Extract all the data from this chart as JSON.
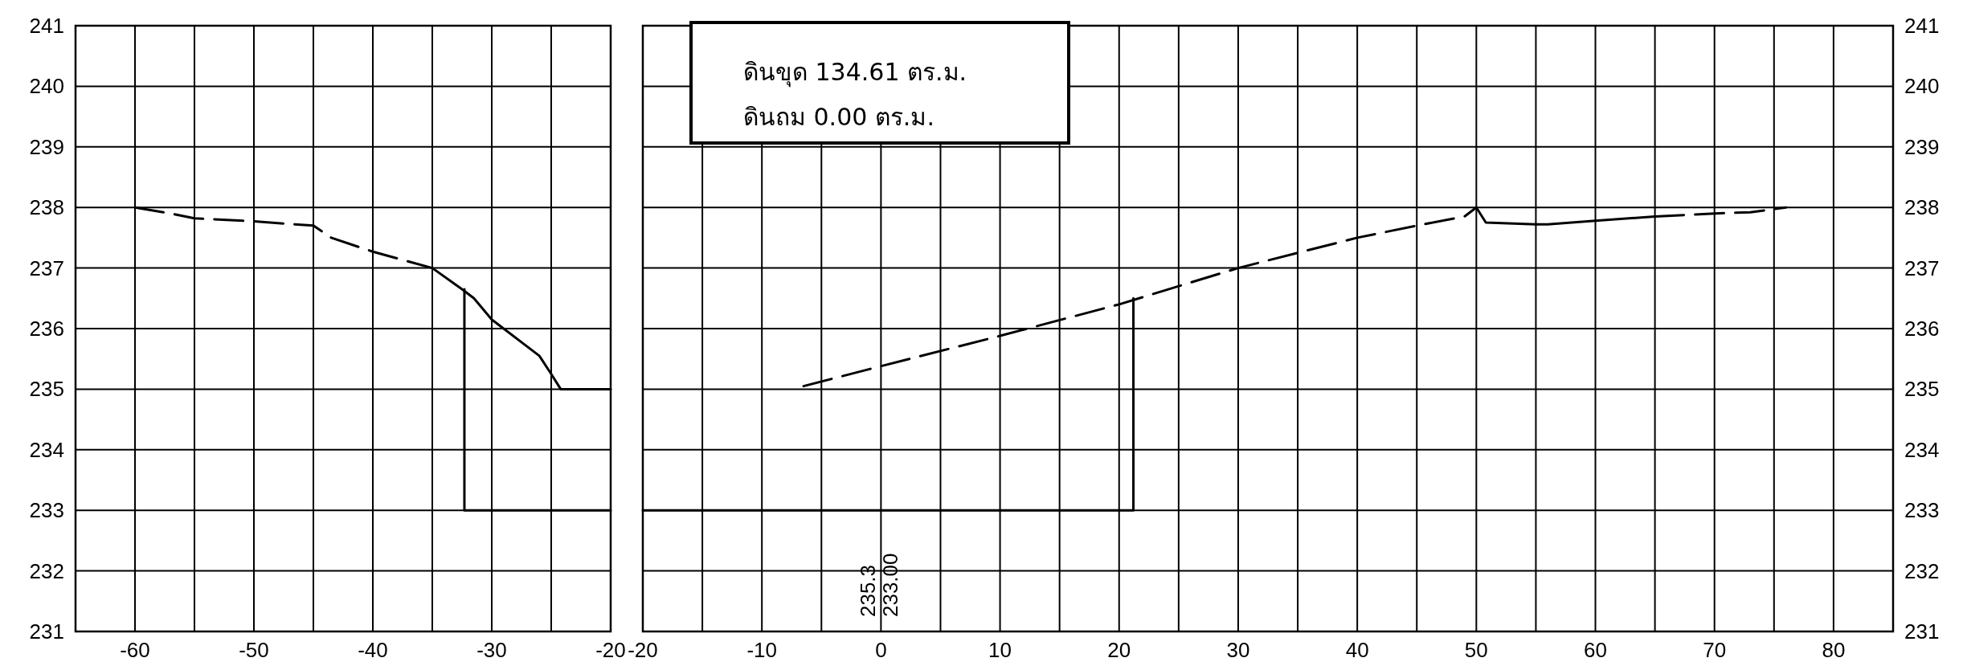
{
  "chart_data": [
    {
      "type": "line",
      "xlim": [
        -65,
        -20
      ],
      "ylim": [
        231,
        241
      ],
      "grid": true,
      "xticks": [
        {
          "value": -65,
          "label": null
        },
        -60,
        {
          "value": -55,
          "label": null
        },
        -50,
        {
          "value": -45,
          "label": null
        },
        -40,
        {
          "value": -35,
          "label": null
        },
        -30,
        {
          "value": -25,
          "label": null
        },
        -20
      ],
      "yticks": [
        231,
        232,
        233,
        234,
        235,
        236,
        237,
        238,
        239,
        240,
        241
      ],
      "series": [
        {
          "color": "#000000",
          "line_style": "dashed",
          "x": [
            -60,
            -57,
            -55,
            -50,
            -45,
            -43.5,
            -40,
            -35
          ],
          "values": [
            238,
            237.9,
            237.82,
            237.77,
            237.7,
            237.5,
            237.27,
            237.0
          ]
        },
        {
          "color": "#000000",
          "line_style": "solid",
          "x": [
            -35,
            -32.5,
            -31.5,
            -30,
            -26,
            -25,
            -24.2,
            -20
          ],
          "values": [
            237.0,
            236.65,
            236.5,
            236.15,
            235.55,
            235.25,
            235.0,
            235.0
          ]
        },
        {
          "color": "#000000",
          "line_style": "solid",
          "x": [
            -32.3,
            -32.3,
            -20
          ],
          "values": [
            236.65,
            233,
            233
          ]
        }
      ]
    },
    {
      "type": "line",
      "xlim": [
        -20,
        85
      ],
      "ylim": [
        231,
        241
      ],
      "grid": true,
      "xticks": [
        -20,
        {
          "value": -15,
          "label": null
        },
        -10,
        {
          "value": -5,
          "label": null
        },
        0,
        {
          "value": 5,
          "label": null
        },
        10,
        {
          "value": 15,
          "label": null
        },
        20,
        {
          "value": 25,
          "label": null
        },
        30,
        {
          "value": 35,
          "label": null
        },
        40,
        {
          "value": 45,
          "label": null
        },
        50,
        {
          "value": 55,
          "label": null
        },
        60,
        {
          "value": 65,
          "label": null
        },
        70,
        {
          "value": 75,
          "label": null
        },
        80,
        {
          "value": 85,
          "label": null
        }
      ],
      "yticks": [
        231,
        232,
        233,
        234,
        235,
        236,
        237,
        238,
        239,
        240,
        241
      ],
      "series": [
        {
          "color": "#000000",
          "line_style": "dashed",
          "x": [
            -6.5,
            0,
            10,
            20,
            30,
            40,
            45,
            49,
            50
          ],
          "values": [
            235.05,
            235.38,
            235.88,
            236.4,
            237.0,
            237.5,
            237.7,
            237.85,
            238.0
          ]
        },
        {
          "color": "#000000",
          "line_style": "solid",
          "x": [
            50,
            50.8,
            55,
            56,
            60,
            65
          ],
          "values": [
            238.0,
            237.75,
            237.72,
            237.72,
            237.78,
            237.85
          ]
        },
        {
          "color": "#000000",
          "line_style": "dashed",
          "x": [
            65,
            70,
            73,
            76
          ],
          "values": [
            237.85,
            237.9,
            237.92,
            238.0
          ]
        },
        {
          "color": "#000000",
          "line_style": "solid",
          "x": [
            -20,
            21.2,
            21.2
          ],
          "values": [
            233,
            233,
            236.5
          ]
        }
      ],
      "annotations": [
        "ดินขุด 134.61 ตร.ม.",
        "ดินถม 0.00 ตร.ม.",
        "235.3",
        "233.00"
      ]
    }
  ]
}
